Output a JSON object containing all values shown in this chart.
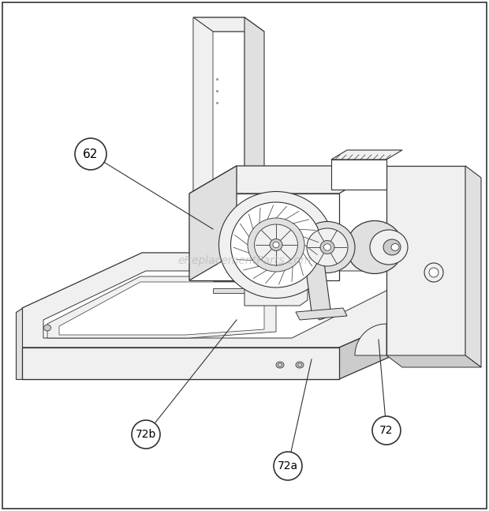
{
  "background_color": "#ffffff",
  "border_color": "#333333",
  "watermark_text": "eReplacementParts.com",
  "label_62": "62",
  "label_72": "72",
  "label_72a": "72a",
  "label_72b": "72b",
  "line_color": "#333333",
  "fill_white": "#ffffff",
  "fill_light": "#f0f0f0",
  "fill_mid": "#e0e0e0",
  "fill_dark": "#cccccc",
  "figsize": [
    6.2,
    6.47
  ],
  "dpi": 100
}
